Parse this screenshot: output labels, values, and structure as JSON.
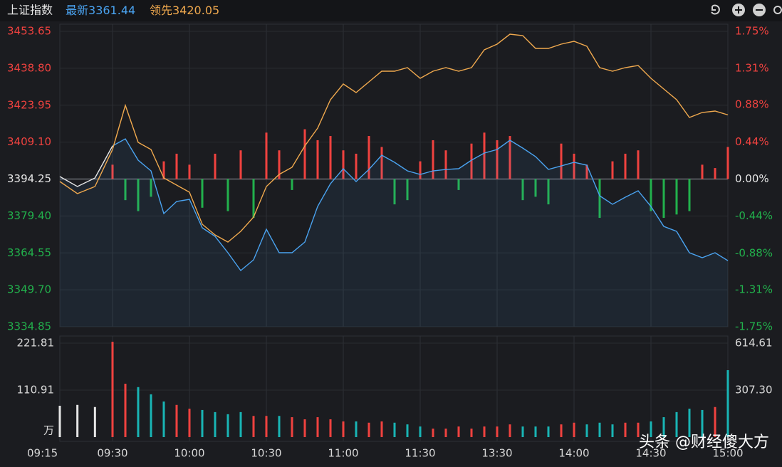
{
  "header": {
    "title": "上证指数",
    "watermark": "头条 @财经傻大方"
  },
  "chart_data": [
    {
      "type": "line",
      "x": [
        0,
        5,
        10,
        15,
        20,
        25,
        30,
        35,
        40,
        45,
        50,
        55,
        60,
        65,
        70,
        75,
        80,
        85,
        90,
        95,
        100,
        105,
        110,
        115,
        120,
        125,
        130,
        135,
        140,
        145,
        150,
        155,
        160,
        165,
        170,
        175,
        180,
        185,
        190,
        195,
        200,
        205,
        210,
        215,
        220,
        225,
        230,
        235,
        240,
        245,
        250,
        255
      ],
      "xlim": [
        0,
        255
      ],
      "xticks": [
        {
          "value": 0,
          "label": "09:15"
        },
        {
          "value": 15,
          "label": "09:30"
        },
        {
          "value": 45,
          "label": "10:00"
        },
        {
          "value": 75,
          "label": "10:30"
        },
        {
          "value": 105,
          "label": "11:00"
        },
        {
          "value": 135,
          "label": "11:30"
        },
        {
          "value": 165,
          "label": "13:30"
        },
        {
          "value": 195,
          "label": "14:00"
        },
        {
          "value": 225,
          "label": "14:30"
        },
        {
          "value": 255,
          "label": "15:00"
        }
      ],
      "ylim": [
        3334.85,
        3453.65
      ],
      "yticks": [
        3453.65,
        {
          "value": 3438.8,
          "label": "3438.80"
        },
        3423.95,
        {
          "value": 3409.1,
          "label": "3409.10"
        },
        3394.25,
        {
          "value": 3379.4,
          "label": "3379.40"
        },
        3364.55,
        {
          "value": 3349.7,
          "label": "3349.70"
        },
        3334.85
      ],
      "y2lim": [
        -1.75,
        1.75
      ],
      "y2ticks": [
        {
          "value": 1.75,
          "label": "1.75%"
        },
        {
          "value": 1.31,
          "label": "1.31%"
        },
        {
          "value": 0.88,
          "label": "0.88%"
        },
        {
          "value": 0.44,
          "label": "0.44%"
        },
        {
          "value": 0,
          "label": "0.00%"
        },
        {
          "value": -0.44,
          "label": "-0.44%"
        },
        {
          "value": -0.88,
          "label": "-0.88%"
        },
        {
          "value": -1.31,
          "label": "-1.31%"
        },
        {
          "value": -1.75,
          "label": "-1.75%"
        }
      ],
      "colors": {
        "up": "#f0423f",
        "down": "#22b14c",
        "auction": "#e6e6e6"
      },
      "series": [
        {
          "name": "最新",
          "color": "#4aa3f0",
          "values": [
            3395.25,
            3391.24,
            3394.68,
            3407.56,
            3410.42,
            3401.84,
            3397.54,
            3380.36,
            3385.23,
            3386.09,
            3374.64,
            3371.2,
            3364.62,
            3357.46,
            3361.76,
            3374.07,
            3364.62,
            3364.62,
            3368.91,
            3383.23,
            3392.39,
            3398.4,
            3393.25,
            3398.11,
            3403.84,
            3400.98,
            3397.54,
            3396.11,
            3397.54,
            3398.11,
            3398.4,
            3401.84,
            3404.7,
            3406.13,
            3409.85,
            3406.7,
            3403.27,
            3398.11,
            3399.54,
            3400.98,
            3399.83,
            3387.52,
            3384.09,
            3386.95,
            3389.53,
            3383.23,
            3375.21,
            3373.21,
            3364.62,
            3362.62,
            3364.62,
            3361.44
          ]
        },
        {
          "name": "领先",
          "color": "#f0a94e",
          "values": [
            3393.25,
            3388.38,
            3391.24,
            3406.13,
            3423.88,
            3408.99,
            3406.13,
            3394.68,
            3391.82,
            3388.95,
            3376.07,
            3371.78,
            3368.91,
            3373.21,
            3378.93,
            3391.24,
            3396.11,
            3398.97,
            3407.56,
            3414.72,
            3426.17,
            3432.47,
            3429.03,
            3433.32,
            3437.62,
            3437.62,
            3439.05,
            3434.76,
            3437.62,
            3439.05,
            3437.62,
            3439.05,
            3446.21,
            3448.5,
            3452.5,
            3451.93,
            3446.78,
            3446.78,
            3448.5,
            3449.64,
            3447.64,
            3439.05,
            3437.62,
            3439.05,
            3439.91,
            3434.76,
            3430.46,
            3426.17,
            3419.01,
            3421.01,
            3421.59,
            3420.05
          ]
        },
        {
          "type": "bar",
          "axis": "y2",
          "x": [
            15,
            20,
            25,
            30,
            35,
            40,
            45,
            50,
            55,
            60,
            65,
            70,
            75,
            80,
            85,
            90,
            95,
            100,
            105,
            110,
            115,
            120,
            125,
            130,
            135,
            140,
            145,
            150,
            155,
            160,
            165,
            170,
            175,
            180,
            185,
            190,
            195,
            200,
            205,
            210,
            215,
            220,
            225,
            230,
            235,
            240,
            245,
            250,
            255
          ],
          "values": [
            0.17,
            -0.25,
            -0.38,
            -0.21,
            0.21,
            0.3,
            0.17,
            -0.34,
            0.3,
            -0.38,
            0.34,
            -0.46,
            0.55,
            0.34,
            -0.13,
            0.59,
            0.46,
            0.51,
            0.34,
            0.3,
            0.51,
            0.38,
            -0.3,
            -0.25,
            0.21,
            0.46,
            0.34,
            -0.13,
            0.42,
            0.55,
            0.46,
            0.51,
            -0.25,
            -0.21,
            -0.3,
            0.42,
            0.3,
            0.17,
            -0.46,
            0.21,
            0.3,
            0.34,
            -0.38,
            -0.46,
            -0.42,
            -0.38,
            0.17,
            0.13,
            0.38
          ]
        }
      ]
    },
    {
      "type": "bar",
      "x": [
        0,
        5,
        10,
        15,
        20,
        25,
        30,
        35,
        40,
        45,
        50,
        55,
        60,
        65,
        70,
        75,
        80,
        85,
        90,
        95,
        100,
        105,
        110,
        115,
        120,
        125,
        130,
        135,
        140,
        145,
        150,
        155,
        160,
        165,
        170,
        175,
        180,
        185,
        190,
        195,
        200,
        205,
        210,
        215,
        220,
        225,
        230,
        235,
        240,
        245,
        250,
        255
      ],
      "values": [
        74,
        76,
        71,
        225,
        126,
        118,
        101,
        84,
        76,
        67,
        64,
        59,
        54,
        59,
        50,
        50,
        50,
        47,
        42,
        47,
        42,
        37,
        37,
        34,
        37,
        34,
        30,
        25,
        20,
        20,
        25,
        20,
        25,
        25,
        30,
        25,
        25,
        25,
        30,
        34,
        30,
        34,
        30,
        34,
        34,
        37,
        47,
        59,
        67,
        64,
        71,
        158
      ],
      "ylim": [
        0,
        233.6
      ],
      "yticks": [
        221.81,
        110.91
      ],
      "y2lim": [
        0,
        647.3
      ],
      "y2ticks": [
        614.61,
        {
          "value": 307.3,
          "label": "307.30"
        }
      ],
      "unit": "万",
      "colors": {
        "up": "#f0423f",
        "down": "#19b5b5",
        "auction": "#e6e6e6"
      }
    }
  ]
}
